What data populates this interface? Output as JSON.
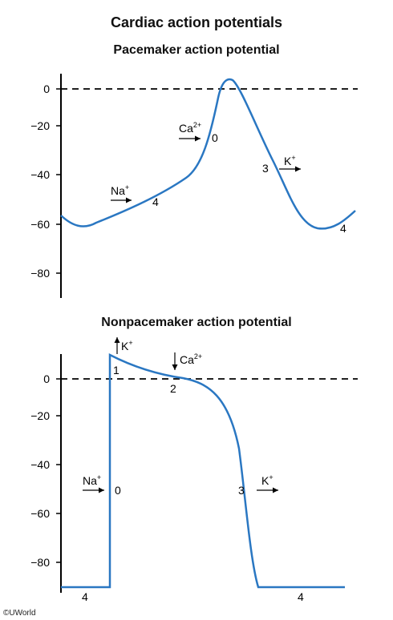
{
  "title": "Cardiac action potentials",
  "copyright": "©UWorld",
  "colors": {
    "trace": "#2a77c2",
    "axis": "#000000",
    "threshold": "#000000"
  },
  "chart_data": [
    {
      "type": "line",
      "title": "Pacemaker action potential",
      "yticks": [
        "0",
        "−20",
        "−40",
        "−60",
        "−80"
      ],
      "ylim": [
        -90,
        10
      ],
      "reference_line": {
        "y": 0,
        "style": "dashed"
      },
      "phase_labels": [
        "0",
        "3",
        "4",
        "4"
      ],
      "ions": [
        {
          "symbol": "Na",
          "charge": "+"
        },
        {
          "symbol": "Ca",
          "charge": "2+"
        },
        {
          "symbol": "K",
          "charge": "+"
        }
      ],
      "series": [
        {
          "x": [
            0,
            1,
            2,
            3,
            4,
            5,
            6,
            7,
            8,
            9,
            10,
            11,
            12
          ],
          "y": [
            -57,
            -61,
            -58,
            -50,
            -42,
            -20,
            4,
            -8,
            -30,
            -52,
            -61,
            -60,
            -55
          ]
        }
      ]
    },
    {
      "type": "line",
      "title": "Nonpacemaker action potential",
      "yticks": [
        "0",
        "−20",
        "−40",
        "−60",
        "−80"
      ],
      "ylim": [
        -90,
        10
      ],
      "reference_line": {
        "y": 0,
        "style": "dashed"
      },
      "phase_labels": [
        "0",
        "1",
        "2",
        "3",
        "4",
        "4"
      ],
      "ions": [
        {
          "symbol": "Na",
          "charge": "+"
        },
        {
          "symbol": "K",
          "charge": "+"
        },
        {
          "symbol": "Ca",
          "charge": "2+"
        },
        {
          "symbol": "K",
          "charge": "+"
        }
      ],
      "series": [
        {
          "x": [
            0,
            1,
            1.01,
            2,
            3,
            4,
            5,
            5.5,
            6,
            7
          ],
          "y": [
            -90,
            -90,
            10,
            3,
            0,
            -6,
            -30,
            -65,
            -90,
            -90
          ]
        }
      ]
    }
  ]
}
